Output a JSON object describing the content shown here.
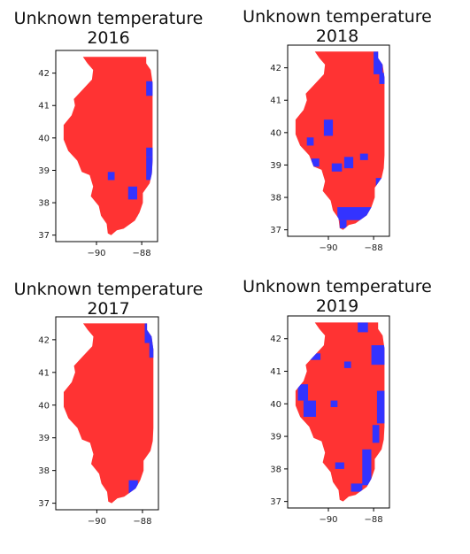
{
  "chart_data": [
    {
      "type": "choropleth",
      "title_line1": "Unknown temperature",
      "title_line2": "2016",
      "xticks": [
        -90,
        -88
      ],
      "yticks": [
        37,
        38,
        39,
        40,
        41,
        42
      ],
      "xlim": [
        -91.8,
        -87.3
      ],
      "ylim": [
        36.8,
        42.7
      ],
      "colors": {
        "main": "#ff3333",
        "highlight": "#3333ff"
      },
      "blue_regions": [
        {
          "x": [
            -87.8,
            -87.35
          ],
          "y": [
            41.3,
            41.75
          ]
        },
        {
          "x": [
            -87.8,
            -87.4
          ],
          "y": [
            39.4,
            39.7
          ]
        },
        {
          "x": [
            -87.8,
            -87.3
          ],
          "y": [
            38.7,
            39.4
          ]
        },
        {
          "x": [
            -89.5,
            -89.2
          ],
          "y": [
            38.7,
            38.95
          ]
        },
        {
          "x": [
            -88.6,
            -88.2
          ],
          "y": [
            38.1,
            38.5
          ]
        },
        {
          "x": [
            -88.2,
            -87.95
          ],
          "y": [
            37.45,
            37.6
          ]
        }
      ]
    },
    {
      "type": "choropleth",
      "title_line1": "Unknown temperature",
      "title_line2": "2018",
      "xticks": [
        -90,
        -88
      ],
      "yticks": [
        37,
        38,
        39,
        40,
        41,
        42
      ],
      "xlim": [
        -91.8,
        -87.3
      ],
      "ylim": [
        36.8,
        42.7
      ],
      "colors": {
        "main": "#ff3333",
        "highlight": "#3333ff"
      },
      "blue_regions": [
        {
          "x": [
            -88.0,
            -87.6
          ],
          "y": [
            41.8,
            42.5
          ]
        },
        {
          "x": [
            -87.75,
            -87.5
          ],
          "y": [
            41.5,
            41.85
          ]
        },
        {
          "x": [
            -90.2,
            -89.8
          ],
          "y": [
            39.9,
            40.4
          ]
        },
        {
          "x": [
            -90.95,
            -90.65
          ],
          "y": [
            39.6,
            39.85
          ]
        },
        {
          "x": [
            -90.75,
            -90.4
          ],
          "y": [
            38.95,
            39.2
          ]
        },
        {
          "x": [
            -89.3,
            -88.9
          ],
          "y": [
            38.9,
            39.25
          ]
        },
        {
          "x": [
            -89.85,
            -89.4
          ],
          "y": [
            38.8,
            39.05
          ]
        },
        {
          "x": [
            -88.6,
            -88.25
          ],
          "y": [
            39.15,
            39.35
          ]
        },
        {
          "x": [
            -87.9,
            -87.65
          ],
          "y": [
            38.3,
            38.6
          ]
        },
        {
          "x": [
            -89.6,
            -88.1
          ],
          "y": [
            37.3,
            37.7
          ]
        },
        {
          "x": [
            -89.5,
            -89.2
          ],
          "y": [
            37.05,
            37.3
          ]
        }
      ]
    },
    {
      "type": "choropleth",
      "title_line1": "Unknown temperature",
      "title_line2": "2017",
      "xticks": [
        -90,
        -88
      ],
      "yticks": [
        37,
        38,
        39,
        40,
        41,
        42
      ],
      "xlim": [
        -91.8,
        -87.3
      ],
      "ylim": [
        36.8,
        42.7
      ],
      "colors": {
        "main": "#ff3333",
        "highlight": "#3333ff"
      },
      "blue_regions": [
        {
          "x": [
            -87.9,
            -87.5
          ],
          "y": [
            41.9,
            42.5
          ]
        },
        {
          "x": [
            -87.7,
            -87.35
          ],
          "y": [
            41.45,
            41.9
          ]
        },
        {
          "x": [
            -88.6,
            -88.2
          ],
          "y": [
            37.3,
            37.7
          ]
        }
      ]
    },
    {
      "type": "choropleth",
      "title_line1": "Unknown temperature",
      "title_line2": "2019",
      "xticks": [
        -90,
        -88
      ],
      "yticks": [
        37,
        38,
        39,
        40,
        41,
        42
      ],
      "xlim": [
        -91.8,
        -87.3
      ],
      "ylim": [
        36.8,
        42.7
      ],
      "colors": {
        "main": "#ff3333",
        "highlight": "#3333ff"
      },
      "blue_regions": [
        {
          "x": [
            -88.7,
            -88.25
          ],
          "y": [
            42.2,
            42.5
          ]
        },
        {
          "x": [
            -88.1,
            -87.5
          ],
          "y": [
            41.2,
            41.8
          ]
        },
        {
          "x": [
            -90.9,
            -90.35
          ],
          "y": [
            41.35,
            41.55
          ]
        },
        {
          "x": [
            -89.3,
            -89.0
          ],
          "y": [
            41.1,
            41.3
          ]
        },
        {
          "x": [
            -91.35,
            -90.9
          ],
          "y": [
            40.1,
            40.6
          ]
        },
        {
          "x": [
            -91.1,
            -90.55
          ],
          "y": [
            39.6,
            40.1
          ]
        },
        {
          "x": [
            -89.9,
            -89.6
          ],
          "y": [
            39.9,
            40.1
          ]
        },
        {
          "x": [
            -87.85,
            -87.5
          ],
          "y": [
            39.4,
            40.4
          ]
        },
        {
          "x": [
            -88.05,
            -87.75
          ],
          "y": [
            38.8,
            39.35
          ]
        },
        {
          "x": [
            -88.5,
            -88.1
          ],
          "y": [
            37.5,
            38.6
          ]
        },
        {
          "x": [
            -89.7,
            -89.3
          ],
          "y": [
            38.0,
            38.2
          ]
        },
        {
          "x": [
            -89.0,
            -88.5
          ],
          "y": [
            37.3,
            37.55
          ]
        }
      ]
    }
  ]
}
